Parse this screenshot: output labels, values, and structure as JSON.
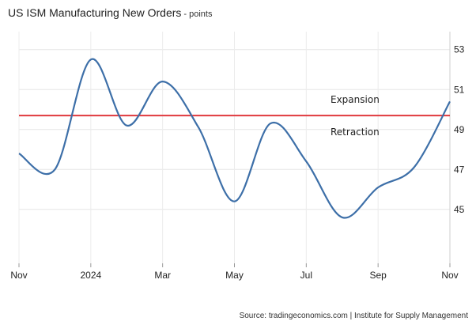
{
  "chart_data": {
    "type": "line",
    "title": "US ISM Manufacturing New Orders",
    "unit": "points",
    "source": "Source: tradingeconomics.com | Institute for Supply Management",
    "x": [
      "2023-11",
      "2023-12",
      "2024-01",
      "2024-02",
      "2024-03",
      "2024-04",
      "2024-05",
      "2024-06",
      "2024-07",
      "2024-08",
      "2024-09",
      "2024-10",
      "2024-11"
    ],
    "x_tick_labels": [
      "Nov",
      "2024",
      "Mar",
      "May",
      "Jul",
      "Sep",
      "Nov"
    ],
    "series": [
      {
        "values": [
          47.8,
          47.0,
          52.5,
          49.2,
          51.4,
          49.1,
          45.4,
          49.3,
          47.4,
          44.6,
          46.1,
          47.1,
          50.4
        ],
        "color": "#3d6fa8"
      }
    ],
    "reference_line": {
      "y": 49.7,
      "color": "#e03a3e"
    },
    "annotations": {
      "above": "Expansion",
      "below": "Retraction"
    },
    "y_ticks": [
      45,
      47,
      49,
      51,
      53
    ],
    "ylim": [
      42.3,
      53.9
    ],
    "y_axis_side": "right",
    "grid": true,
    "legend": "none"
  }
}
